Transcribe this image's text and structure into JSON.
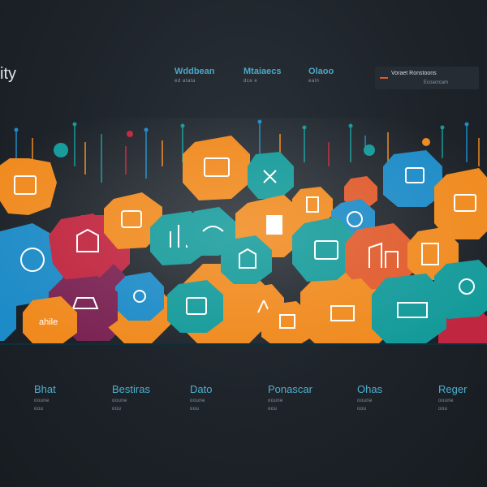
{
  "header": {
    "brand": "ity",
    "nav": [
      {
        "title": "Wddbean",
        "sub": "ed atata"
      },
      {
        "title": "Mtaiaecs",
        "sub": "dce e"
      },
      {
        "title": "Olaoo",
        "sub": "ealn"
      }
    ],
    "panel": {
      "title": "Voraet Ronstoons",
      "sub": "Ecoacrcam"
    }
  },
  "mosaic": {
    "caption": "ahile",
    "tile_colors": [
      "#f08a1e",
      "#149a9a",
      "#1d8bc7",
      "#c0263f",
      "#7a2353"
    ],
    "icons": [
      "document-icon",
      "box-icon",
      "chart-icon",
      "building-icon",
      "gear-icon",
      "shield-icon",
      "mail-icon",
      "globe-icon",
      "device-icon",
      "person-icon",
      "city-icon",
      "briefcase-icon"
    ]
  },
  "footer": [
    {
      "title": "Bhat",
      "lines": [
        "ooune",
        "oou"
      ]
    },
    {
      "title": "Bestiras",
      "lines": [
        "ooune",
        "oou"
      ]
    },
    {
      "title": "Dato",
      "lines": [
        "ooune",
        "oou"
      ]
    },
    {
      "title": "Ponascar",
      "lines": [
        "ooune",
        "oou"
      ]
    },
    {
      "title": "Ohas",
      "lines": [
        "ooune",
        "oou"
      ]
    },
    {
      "title": "Reger",
      "lines": [
        "ooune",
        "oou"
      ]
    }
  ]
}
